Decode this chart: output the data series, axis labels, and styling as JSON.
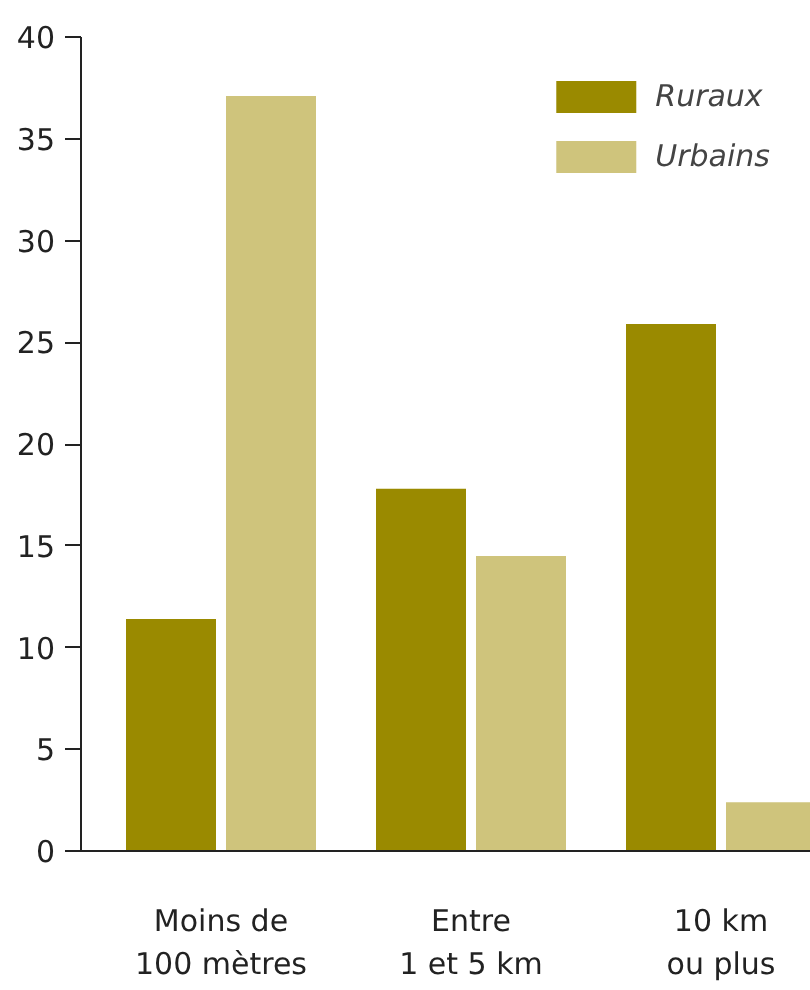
{
  "chart_data": {
    "type": "bar",
    "categories": [
      "Moins de\n100 mètres",
      "Entre\n1 et 5 km",
      "10 km\nou plus"
    ],
    "series": [
      {
        "name": "Ruraux",
        "color": "#9a8a00",
        "values": [
          11.4,
          17.8,
          25.9
        ]
      },
      {
        "name": "Urbains",
        "color": "#cfc47c",
        "values": [
          37.1,
          14.5,
          2.4
        ]
      }
    ],
    "ylim": [
      0,
      40
    ],
    "yticks": [
      0,
      5,
      10,
      15,
      20,
      25,
      30,
      35,
      40
    ],
    "grid": false,
    "legend": "top right"
  }
}
